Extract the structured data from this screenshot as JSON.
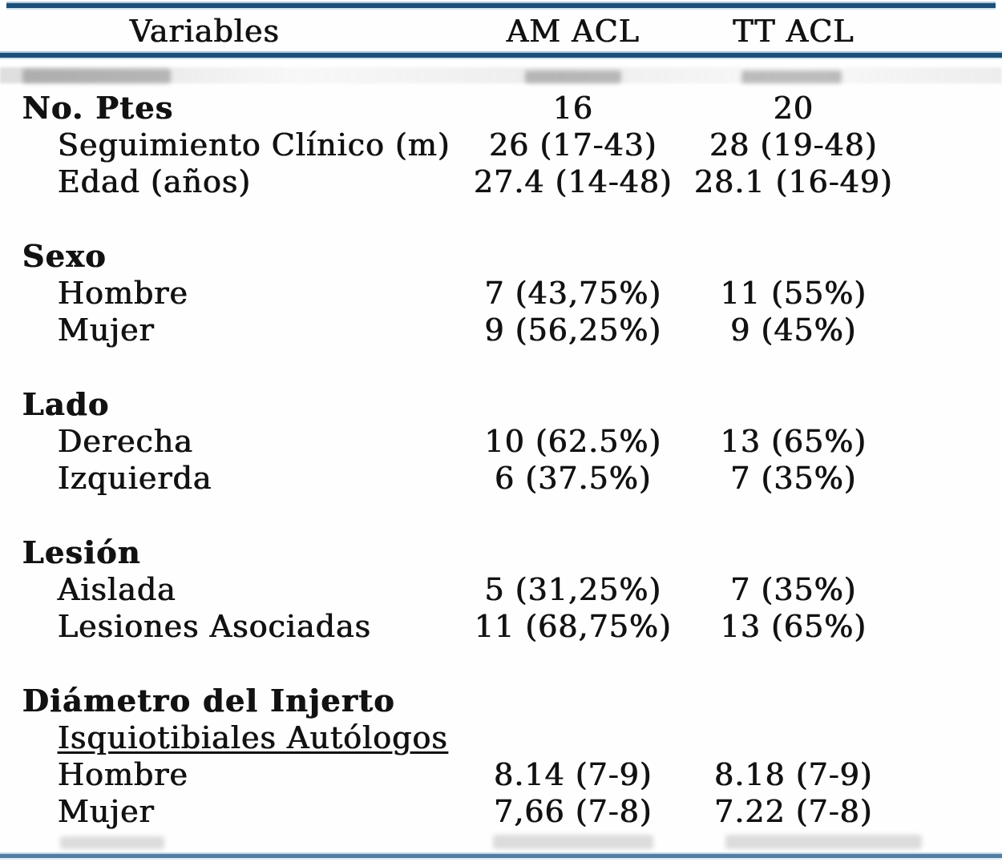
{
  "colors": {
    "page-bg": "#fefefe",
    "text": "#121212",
    "rule-dark": "#1d4f78",
    "rule-halo-top": "#a9c9de",
    "rule-halo-bot": "#cfe2ee",
    "rule-bottom": "#547da3"
  },
  "table": {
    "columns": [
      {
        "label": "Variables"
      },
      {
        "label": "AM ACL"
      },
      {
        "label": "TT ACL"
      }
    ],
    "sections": [
      {
        "header": "No. Ptes",
        "values": [
          "16",
          "20"
        ],
        "rows": [
          {
            "label": "Seguimiento Clínico (m)",
            "am": "26 (17-43)",
            "tt": "28 (19-48)"
          },
          {
            "label": "Edad (años)",
            "am": "27.4 (14-48)",
            "tt": "28.1 (16-49)"
          }
        ]
      },
      {
        "header": "Sexo",
        "values": [
          "",
          ""
        ],
        "rows": [
          {
            "label": "Hombre",
            "am": "7 (43,75%)",
            "tt": "11 (55%)"
          },
          {
            "label": "Mujer",
            "am": "9 (56,25%)",
            "tt": "9 (45%)"
          }
        ]
      },
      {
        "header": "Lado",
        "values": [
          "",
          ""
        ],
        "rows": [
          {
            "label": "Derecha",
            "am": "10 (62.5%)",
            "tt": "13 (65%)"
          },
          {
            "label": "Izquierda",
            "am": "6 (37.5%)",
            "tt": "7 (35%)"
          }
        ]
      },
      {
        "header": "Lesión",
        "values": [
          "",
          ""
        ],
        "rows": [
          {
            "label": "Aislada",
            "am": "5 (31,25%)",
            "tt": "7 (35%)"
          },
          {
            "label": "Lesiones Asociadas",
            "am": "11 (68,75%)",
            "tt": "13 (65%)"
          }
        ]
      },
      {
        "header": "Diámetro del Injerto",
        "values": [
          "",
          ""
        ],
        "rows": [
          {
            "label": "Isquiotibiales Autólogos",
            "am": "",
            "tt": "",
            "underline": true
          },
          {
            "label": "Hombre",
            "am": "8.14 (7-9)",
            "tt": "8.18 (7-9)"
          },
          {
            "label": "Mujer",
            "am": "7,66 (7-8)",
            "tt": "7.22 (7-8)"
          }
        ]
      }
    ]
  }
}
